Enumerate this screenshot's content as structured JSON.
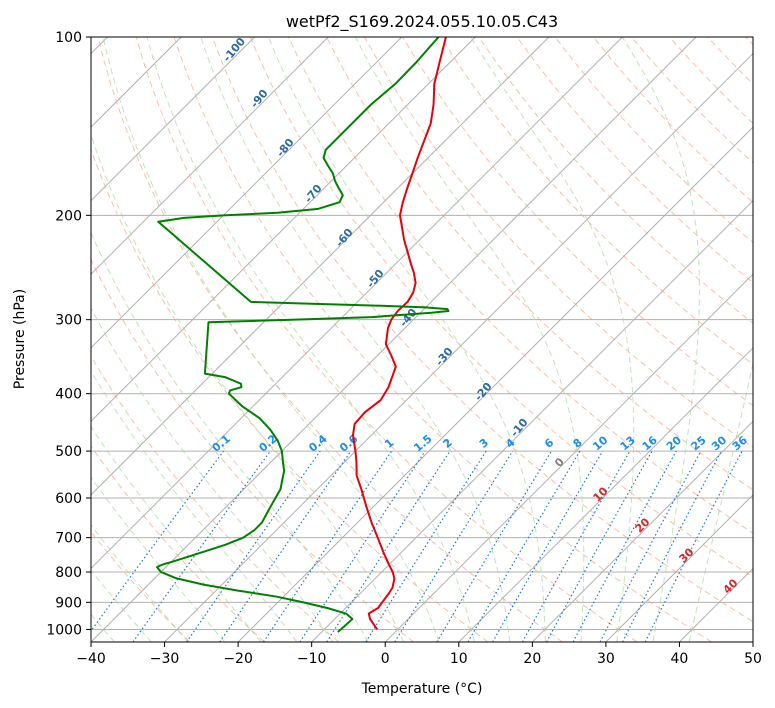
{
  "chart_data": {
    "type": "line",
    "title": "wetPf2_S169.2024.055.10.05.C43",
    "xlabel": "Temperature (°C)",
    "ylabel": "Pressure (hPa)",
    "xlim": [
      -40,
      50
    ],
    "ylim": [
      1050,
      100
    ],
    "y_scale": "log",
    "skew": true,
    "grid": true,
    "x_ticks": [
      -40,
      -30,
      -20,
      -10,
      0,
      10,
      20,
      30,
      40,
      50
    ],
    "y_ticks": [
      100,
      200,
      300,
      400,
      500,
      600,
      700,
      800,
      900,
      1000
    ],
    "series": [
      {
        "color": "#e8000b",
        "pressure": [
          1000,
          960,
          940,
          920,
          900,
          870,
          850,
          820,
          800,
          770,
          740,
          700,
          660,
          620,
          580,
          550,
          520,
          500,
          470,
          450,
          430,
          410,
          390,
          360,
          345,
          330,
          310,
          300,
          290,
          280,
          270,
          260,
          250,
          240,
          230,
          220,
          210,
          200,
          190,
          180,
          170,
          160,
          150,
          140,
          130,
          120,
          110,
          100
        ],
        "temperature": [
          -2.8,
          -5.2,
          -6.1,
          -5.6,
          -5.8,
          -6.1,
          -6.4,
          -7.4,
          -8.5,
          -10.5,
          -12.5,
          -15.2,
          -18.1,
          -21.0,
          -24.0,
          -26.5,
          -28.5,
          -30.0,
          -32.5,
          -33.8,
          -34.0,
          -33.5,
          -34.2,
          -36.0,
          -38.1,
          -40.4,
          -42.3,
          -43.0,
          -43.3,
          -43.2,
          -43.7,
          -44.7,
          -46.3,
          -48.2,
          -50.1,
          -52.1,
          -54.0,
          -56.0,
          -57.4,
          -58.7,
          -60.0,
          -61.4,
          -62.8,
          -64.3,
          -66.5,
          -69.2,
          -71.5,
          -74.0
        ]
      },
      {
        "color": "#008000",
        "pressure": [
          1010,
          990,
          960,
          940,
          920,
          900,
          880,
          860,
          840,
          820,
          800,
          785,
          780,
          775,
          770,
          760,
          740,
          720,
          700,
          680,
          660,
          640,
          620,
          600,
          580,
          560,
          540,
          520,
          500,
          480,
          460,
          440,
          420,
          400,
          395,
          390,
          385,
          380,
          375,
          370,
          303,
          300,
          297,
          292,
          290,
          288,
          286,
          284,
          282,
          280,
          205,
          202,
          200,
          198,
          195,
          190,
          185,
          180,
          175,
          170,
          165,
          160,
          155,
          150,
          145,
          140,
          130,
          120,
          110,
          100
        ],
        "temperature": [
          -7.8,
          -7.7,
          -7.6,
          -9.2,
          -12.5,
          -16.5,
          -21.0,
          -27.0,
          -32.5,
          -37.0,
          -40.0,
          -41.2,
          -41.0,
          -40.6,
          -40.0,
          -39.0,
          -37.0,
          -35.0,
          -33.5,
          -33.0,
          -33.0,
          -33.5,
          -34.0,
          -34.5,
          -35.0,
          -36.0,
          -37.0,
          -38.5,
          -40.0,
          -42.0,
          -44.5,
          -47.5,
          -51.5,
          -55.0,
          -55.3,
          -54.2,
          -54.7,
          -56.2,
          -57.8,
          -61.0,
          -67.5,
          -56.0,
          -46.0,
          -38.5,
          -36.4,
          -36.8,
          -40.0,
          -47.0,
          -56.0,
          -64.5,
          -88.0,
          -85.0,
          -80.0,
          -73.0,
          -68.0,
          -66.0,
          -66.5,
          -68.0,
          -69.5,
          -70.8,
          -72.5,
          -74.2,
          -75.0,
          -75.0,
          -75.0,
          -75.0,
          -75.0,
          -74.5,
          -74.6,
          -75.0
        ]
      }
    ],
    "isotherm_labels": [
      "0",
      "10",
      "20",
      "30",
      "40"
    ],
    "mixing_ratio_labels": [
      "0.1",
      "0.2",
      "0.4",
      "0.6",
      "1",
      "1.5",
      "2",
      "3",
      "4",
      "6",
      "8",
      "10",
      "13",
      "16",
      "20",
      "25",
      "30",
      "36"
    ],
    "moist_adiabat_labels": [
      "-100",
      "-90",
      "-80",
      "-70",
      "-60",
      "-50",
      "-40",
      "-30",
      "-20",
      "-10"
    ]
  }
}
